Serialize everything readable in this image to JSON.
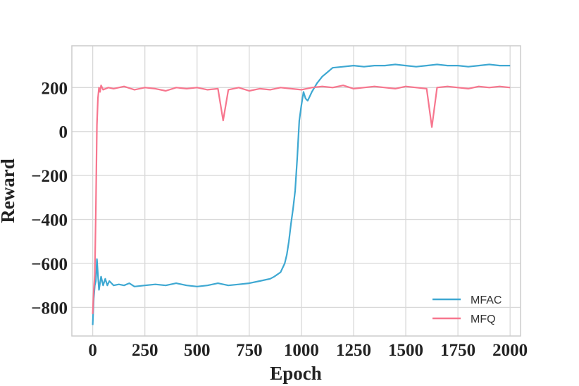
{
  "chart_data": {
    "type": "line",
    "title": "",
    "xlabel": "Epoch",
    "ylabel": "Reward",
    "xlim": [
      -100,
      2050
    ],
    "ylim": [
      -930,
      390
    ],
    "xticks": [
      0,
      250,
      500,
      750,
      1000,
      1250,
      1500,
      1750,
      2000
    ],
    "xtick_labels": [
      "0",
      "250",
      "500",
      "750",
      "1000",
      "1250",
      "1500",
      "1750",
      "2000"
    ],
    "yticks": [
      -800,
      -600,
      -400,
      -200,
      0,
      200
    ],
    "ytick_labels": [
      "−800",
      "−600",
      "−400",
      "−200",
      "0",
      "200"
    ],
    "grid": true,
    "legend_position": "bottom-right",
    "series": [
      {
        "name": "MFAC",
        "color": "#3ea8d2",
        "x": [
          0,
          5,
          10,
          15,
          20,
          25,
          30,
          35,
          40,
          50,
          60,
          70,
          80,
          90,
          100,
          125,
          150,
          175,
          200,
          250,
          300,
          350,
          400,
          450,
          500,
          550,
          600,
          650,
          700,
          750,
          800,
          850,
          870,
          900,
          920,
          930,
          940,
          950,
          960,
          970,
          980,
          990,
          1000,
          1010,
          1020,
          1030,
          1040,
          1050,
          1075,
          1100,
          1125,
          1150,
          1200,
          1250,
          1300,
          1350,
          1400,
          1450,
          1500,
          1550,
          1600,
          1650,
          1700,
          1750,
          1800,
          1850,
          1900,
          1950,
          2000
        ],
        "y": [
          -880,
          -760,
          -700,
          -680,
          -580,
          -650,
          -720,
          -690,
          -660,
          -700,
          -670,
          -700,
          -680,
          -690,
          -700,
          -695,
          -700,
          -690,
          -705,
          -700,
          -695,
          -700,
          -690,
          -700,
          -705,
          -700,
          -690,
          -700,
          -695,
          -690,
          -680,
          -670,
          -660,
          -640,
          -600,
          -560,
          -500,
          -420,
          -350,
          -270,
          -120,
          50,
          120,
          180,
          150,
          140,
          160,
          180,
          220,
          250,
          270,
          290,
          295,
          300,
          295,
          300,
          300,
          305,
          300,
          295,
          300,
          305,
          300,
          300,
          295,
          300,
          305,
          300,
          300
        ]
      },
      {
        "name": "MFQ",
        "color": "#f7768e",
        "x": [
          0,
          5,
          10,
          15,
          20,
          25,
          30,
          35,
          40,
          50,
          75,
          100,
          150,
          200,
          250,
          300,
          350,
          400,
          450,
          500,
          550,
          600,
          625,
          650,
          700,
          750,
          800,
          850,
          900,
          950,
          1000,
          1050,
          1100,
          1150,
          1200,
          1250,
          1300,
          1350,
          1400,
          1450,
          1500,
          1550,
          1600,
          1625,
          1650,
          1700,
          1750,
          1800,
          1850,
          1900,
          1950,
          2000
        ],
        "y": [
          -830,
          -720,
          -650,
          -350,
          30,
          150,
          200,
          180,
          210,
          190,
          200,
          195,
          205,
          190,
          200,
          195,
          185,
          200,
          195,
          200,
          190,
          195,
          50,
          190,
          200,
          185,
          195,
          190,
          200,
          195,
          190,
          200,
          205,
          200,
          210,
          195,
          200,
          205,
          200,
          195,
          205,
          200,
          195,
          20,
          200,
          205,
          200,
          195,
          205,
          200,
          205,
          200
        ]
      }
    ]
  }
}
